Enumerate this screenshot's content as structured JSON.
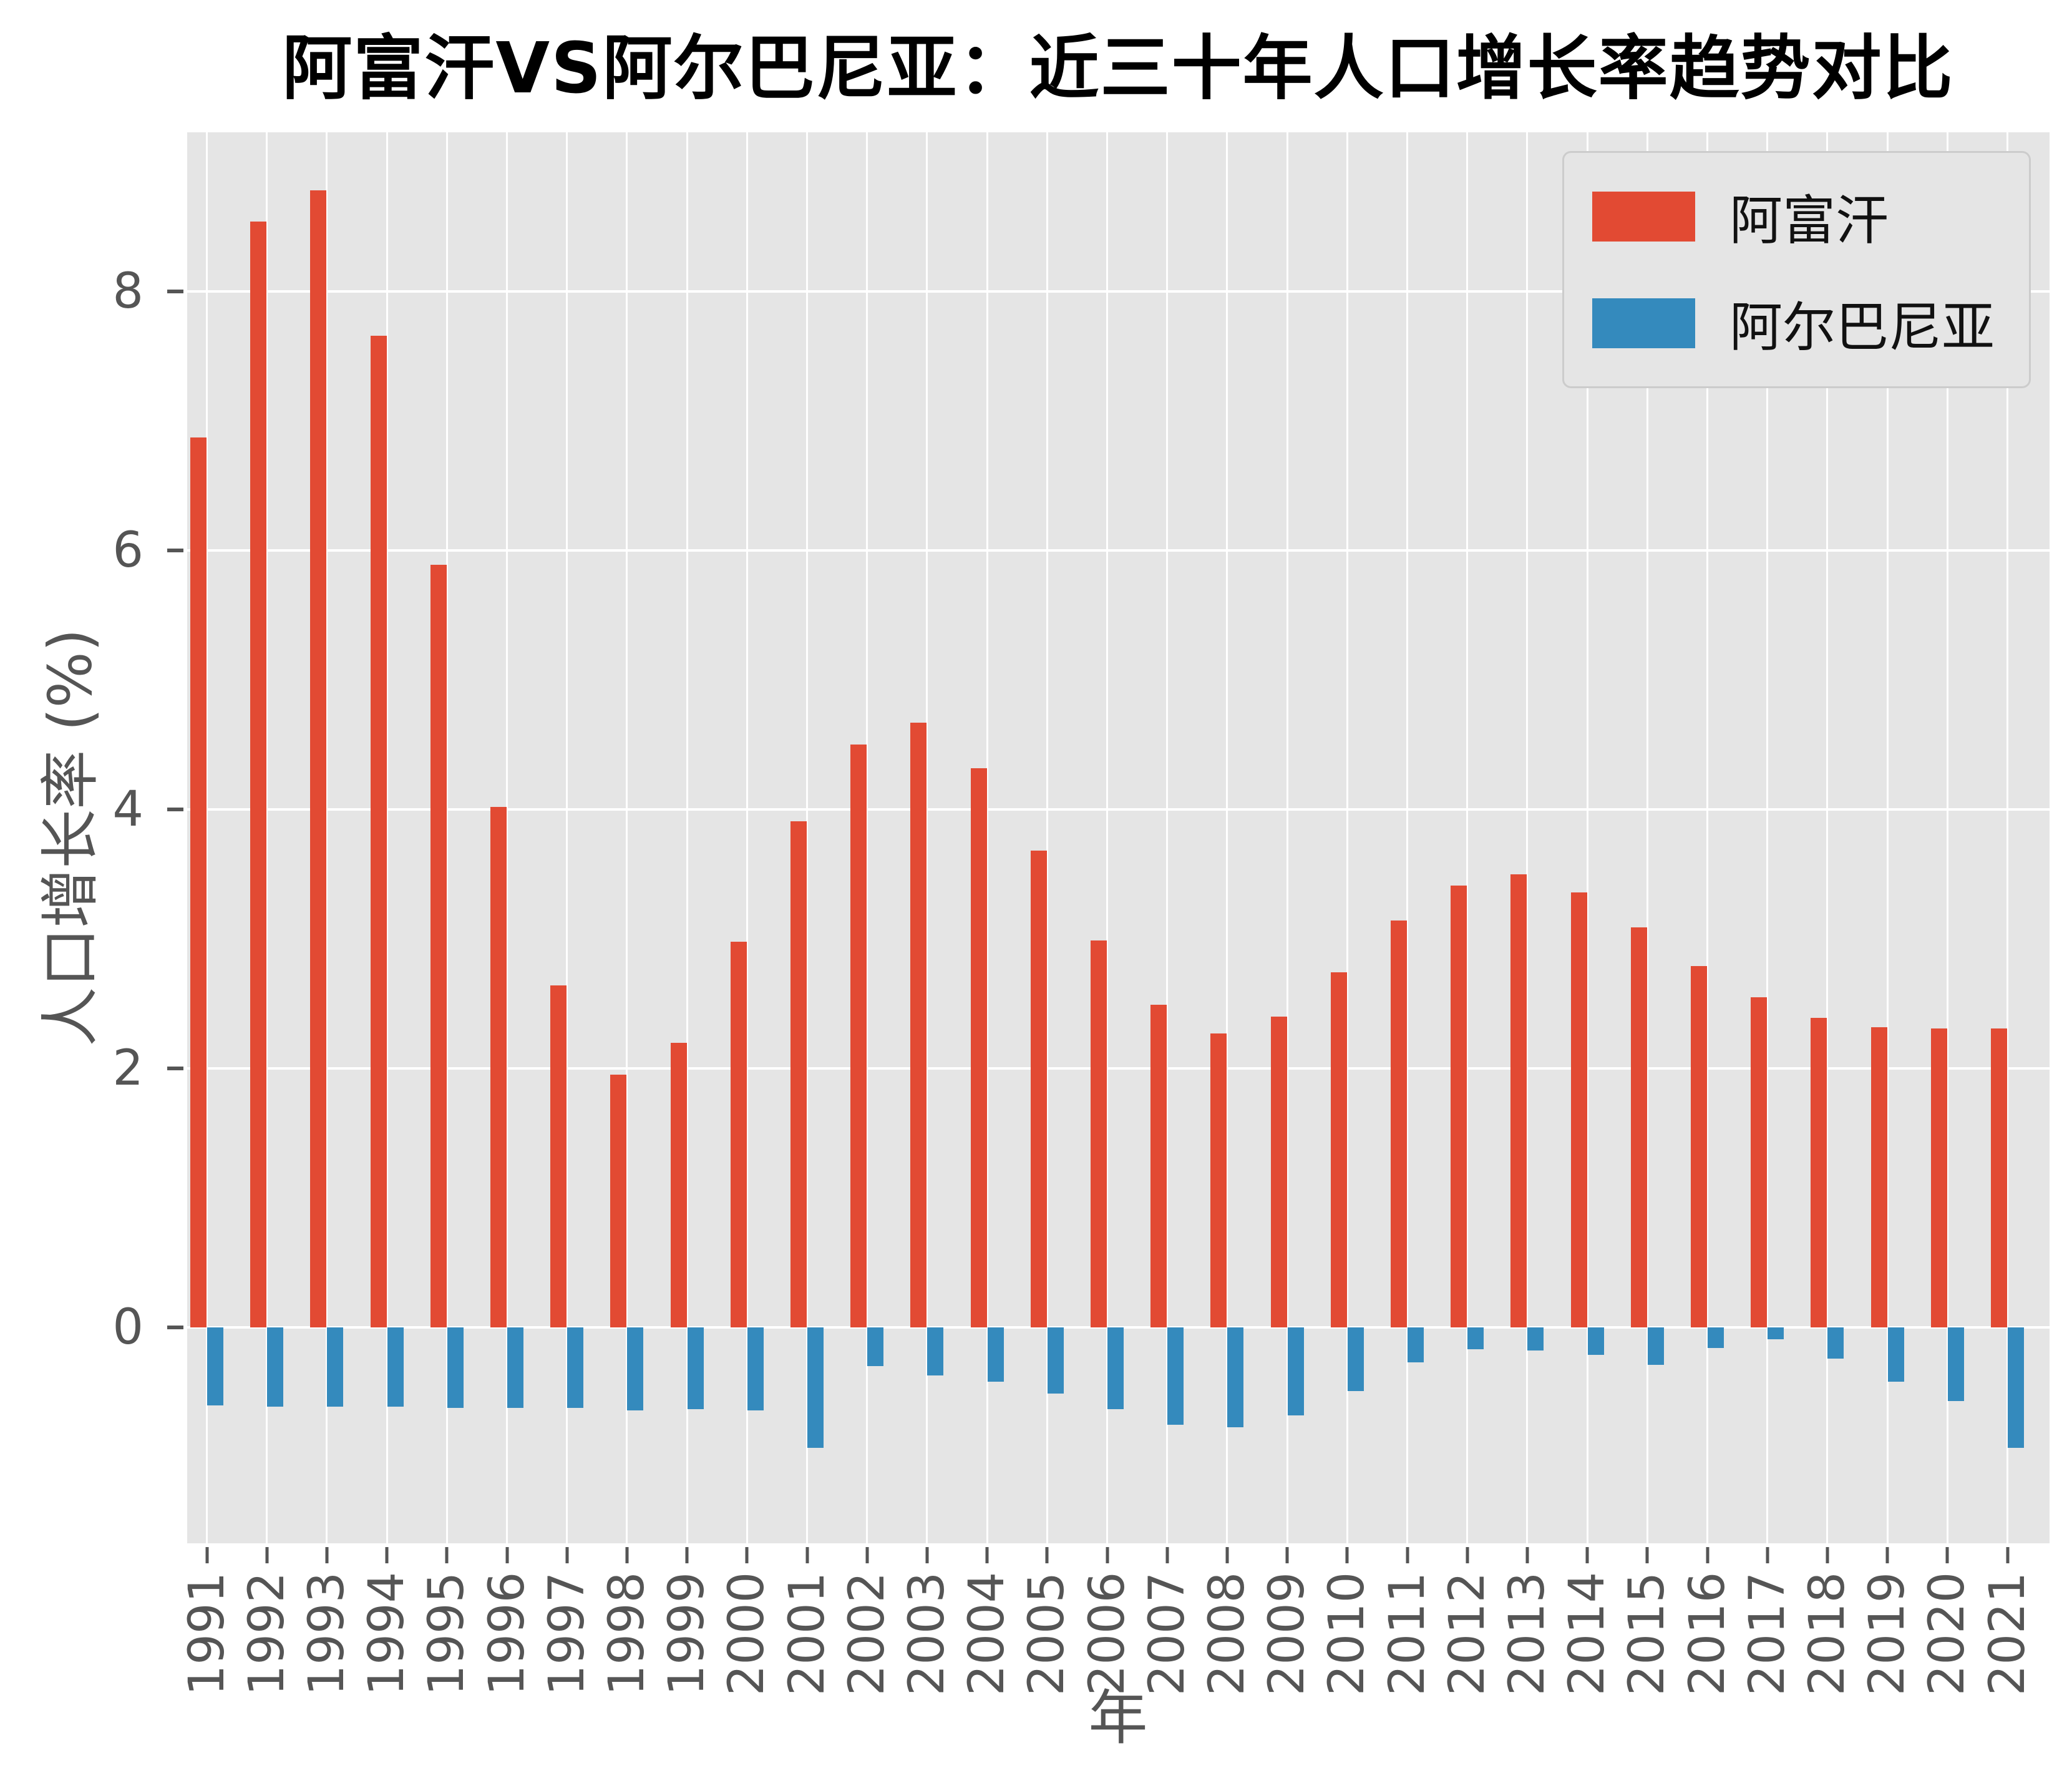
{
  "title": "阿富汗VS阿尔巴尼亚：近三十年人口增长率趋势对比",
  "chart_data": {
    "type": "bar",
    "title": "阿富汗VS阿尔巴尼亚：近三十年人口增长率趋势对比",
    "xlabel": "年",
    "ylabel": "人口增长率 (%)",
    "categories": [
      "1991",
      "1992",
      "1993",
      "1994",
      "1995",
      "1996",
      "1997",
      "1998",
      "1999",
      "2000",
      "2001",
      "2002",
      "2003",
      "2004",
      "2005",
      "2006",
      "2007",
      "2008",
      "2009",
      "2010",
      "2011",
      "2012",
      "2013",
      "2014",
      "2015",
      "2016",
      "2017",
      "2018",
      "2019",
      "2020",
      "2021"
    ],
    "series": [
      {
        "name": "阿富汗",
        "color": "#E24A33",
        "values": [
          6.87,
          8.54,
          8.78,
          7.66,
          5.89,
          4.02,
          2.64,
          1.95,
          2.2,
          2.98,
          3.91,
          4.5,
          4.67,
          4.32,
          3.68,
          2.99,
          2.49,
          2.27,
          2.4,
          2.74,
          3.14,
          3.41,
          3.5,
          3.36,
          3.09,
          2.79,
          2.55,
          2.39,
          2.32,
          2.31,
          2.31
        ]
      },
      {
        "name": "阿尔巴尼亚",
        "color": "#348ABD",
        "values": [
          -0.6,
          -0.61,
          -0.61,
          -0.61,
          -0.62,
          -0.62,
          -0.62,
          -0.64,
          -0.63,
          -0.64,
          -0.93,
          -0.3,
          -0.37,
          -0.42,
          -0.51,
          -0.63,
          -0.75,
          -0.77,
          -0.68,
          -0.49,
          -0.27,
          -0.17,
          -0.18,
          -0.21,
          -0.29,
          -0.16,
          -0.09,
          -0.24,
          -0.42,
          -0.57,
          -0.93
        ]
      }
    ],
    "yticks": [
      0,
      2,
      4,
      6,
      8
    ],
    "ylim": [
      -1.67,
      9.23
    ],
    "grid": true,
    "legend_position": "upper right",
    "plot_bg_color": "#E5E5E5",
    "grid_color": "#FFFFFF",
    "tick_label_color": "#555555"
  },
  "legend": {
    "items": [
      {
        "label": "阿富汗",
        "color": "#E24A33"
      },
      {
        "label": "阿尔巴尼亚",
        "color": "#348ABD"
      }
    ]
  }
}
